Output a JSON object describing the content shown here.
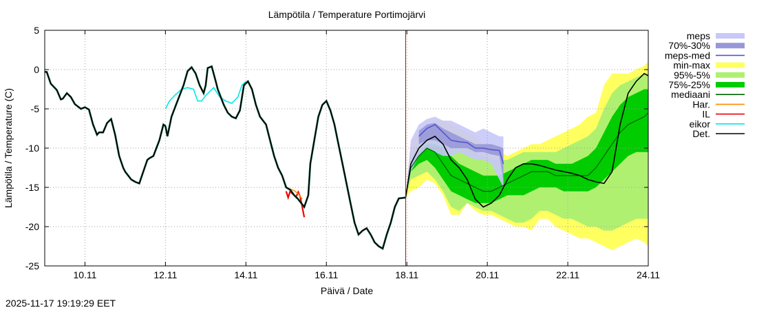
{
  "chart_data": {
    "type": "line",
    "title": "Lämpötila / Temperature   Portimojärvi",
    "xlabel": "Päivä / Date",
    "ylabel": "Lämpötila / Temperature (C)",
    "timestamp": "2025-11-17 19:19:29 EET",
    "ylim": [
      -25,
      5
    ],
    "xlim": [
      9.0,
      24.0
    ],
    "grid": true,
    "yticks": [
      5,
      0,
      -5,
      -10,
      -15,
      -20,
      -25
    ],
    "xticks": [
      {
        "value": 10,
        "label": "10.11"
      },
      {
        "value": 12,
        "label": "12.11"
      },
      {
        "value": 14,
        "label": "14.11"
      },
      {
        "value": 16,
        "label": "16.11"
      },
      {
        "value": 18,
        "label": "18.11"
      },
      {
        "value": 20,
        "label": "20.11"
      },
      {
        "value": 22,
        "label": "22.11"
      },
      {
        "value": 24,
        "label": "24.11"
      }
    ],
    "forecast_start": 17.97,
    "legend": [
      {
        "label": "meps",
        "color": "#c8c8f8",
        "kind": "band"
      },
      {
        "label": "70%-30%",
        "color": "#9898d8",
        "kind": "band"
      },
      {
        "label": "meps-med",
        "color": "#5050d0",
        "kind": "line"
      },
      {
        "label": "min-max",
        "color": "#ffff60",
        "kind": "band"
      },
      {
        "label": "95%-5%",
        "color": "#b0f070",
        "kind": "band"
      },
      {
        "label": "75%-25%",
        "color": "#00cc00",
        "kind": "band"
      },
      {
        "label": "mediaani",
        "color": "#006400",
        "kind": "line"
      },
      {
        "label": "Har.",
        "color": "#ff8800",
        "kind": "line"
      },
      {
        "label": "IL",
        "color": "#ee0000",
        "kind": "line"
      },
      {
        "label": "eikor",
        "color": "#00e8e8",
        "kind": "line"
      },
      {
        "label": "Det.",
        "color": "#000000",
        "kind": "line"
      }
    ],
    "observed": {
      "name": "Det.",
      "x": [
        9.0,
        9.05,
        9.15,
        9.3,
        9.4,
        9.45,
        9.55,
        9.65,
        9.75,
        9.9,
        10.0,
        10.1,
        10.2,
        10.3,
        10.35,
        10.45,
        10.55,
        10.65,
        10.75,
        10.85,
        10.95,
        11.0,
        11.15,
        11.25,
        11.35,
        11.45,
        11.55,
        11.6,
        11.7,
        11.85,
        11.95,
        12.0,
        12.05,
        12.15,
        12.3,
        12.45,
        12.55,
        12.65,
        12.75,
        12.85,
        12.95,
        13.0,
        13.05,
        13.15,
        13.25,
        13.3,
        13.45,
        13.55,
        13.65,
        13.75,
        13.85,
        13.95,
        14.05,
        14.15,
        14.25,
        14.35,
        14.5,
        14.6,
        14.7,
        14.8,
        14.9,
        15.0,
        15.1,
        15.2,
        15.3,
        15.45,
        15.55,
        15.6,
        15.7,
        15.8,
        15.9,
        16.0,
        16.1,
        16.2,
        16.3,
        16.4,
        16.5,
        16.6,
        16.7,
        16.8,
        16.9,
        17.0,
        17.1,
        17.2,
        17.3,
        17.4,
        17.5,
        17.6,
        17.7,
        17.8,
        17.97
      ],
      "y": [
        -0.3,
        -0.3,
        -1.8,
        -2.6,
        -3.8,
        -3.7,
        -3.0,
        -3.5,
        -4.4,
        -5.0,
        -4.8,
        -5.1,
        -7.0,
        -8.3,
        -8.0,
        -8.0,
        -6.8,
        -6.3,
        -8.3,
        -11.0,
        -12.5,
        -13.0,
        -14.0,
        -14.3,
        -14.5,
        -13.0,
        -11.5,
        -11.3,
        -11.0,
        -9.0,
        -7.0,
        -7.2,
        -8.5,
        -6.0,
        -4.0,
        -2.0,
        -0.2,
        0.3,
        -0.5,
        -2.0,
        -3.0,
        -2.0,
        0.2,
        0.4,
        -1.5,
        -2.5,
        -4.5,
        -5.5,
        -6.0,
        -6.2,
        -5.2,
        -2.0,
        -1.5,
        -2.5,
        -4.5,
        -6.0,
        -7.0,
        -9.0,
        -11.0,
        -12.5,
        -13.5,
        -15.0,
        -15.3,
        -16.0,
        -16.5,
        -17.5,
        -16.0,
        -12.0,
        -9.0,
        -6.0,
        -4.5,
        -4.0,
        -5.2,
        -7.0,
        -9.5,
        -12.0,
        -14.5,
        -17.0,
        -19.5,
        -21.0,
        -20.5,
        -20.2,
        -21.0,
        -22.0,
        -22.5,
        -22.8,
        -21.0,
        -19.5,
        -17.5,
        -16.4,
        -16.3
      ]
    },
    "eikor": {
      "name": "eikor",
      "x": [
        12.0,
        12.1,
        12.25,
        12.4,
        12.55,
        12.7,
        12.8,
        12.9,
        13.0,
        13.1,
        13.2,
        13.35,
        13.5,
        13.65,
        13.8,
        13.9,
        14.0
      ],
      "y": [
        -5.0,
        -4.0,
        -3.2,
        -2.5,
        -2.3,
        -2.5,
        -4.0,
        -4.0,
        -3.3,
        -2.8,
        -2.3,
        -3.5,
        -4.0,
        -4.3,
        -3.5,
        -2.0,
        -1.5
      ]
    },
    "il": {
      "name": "IL",
      "x": [
        15.0,
        15.05,
        15.1,
        15.15,
        15.25,
        15.3,
        15.35,
        15.45
      ],
      "y": [
        -15.5,
        -16.3,
        -15.5,
        -15.8,
        -16.2,
        -15.6,
        -16.2,
        -18.8
      ]
    },
    "har": {
      "name": "Har.",
      "x": [
        15.0,
        15.1,
        15.2,
        15.3,
        15.4
      ],
      "y": [
        -15.0,
        -15.2,
        -15.4,
        -15.8,
        -16.5
      ]
    },
    "forecast_x": [
      17.97,
      18.1,
      18.3,
      18.5,
      18.7,
      18.9,
      19.1,
      19.3,
      19.5,
      19.7,
      19.9,
      20.1,
      20.3,
      20.5,
      20.7,
      20.9,
      21.1,
      21.3,
      21.5,
      21.7,
      21.9,
      22.1,
      22.3,
      22.5,
      22.7,
      22.9,
      23.1,
      23.3,
      23.5,
      23.7,
      23.9,
      24.0
    ],
    "minmax": {
      "upper": [
        -16.3,
        -9.5,
        -8.0,
        -7.0,
        -6.5,
        -6.5,
        -7.0,
        -7.5,
        -8.0,
        -8.5,
        -9.5,
        -10.0,
        -10.5,
        -11.0,
        -10.5,
        -10.0,
        -9.5,
        -9.5,
        -9.0,
        -8.5,
        -8.0,
        -7.5,
        -7.0,
        -6.0,
        -5.5,
        -2.0,
        -0.5,
        -0.5,
        -0.5,
        0.0,
        0.5,
        1.0
      ],
      "lower": [
        -16.3,
        -15.5,
        -15.0,
        -14.0,
        -14.5,
        -16.0,
        -18.5,
        -18.5,
        -17.0,
        -18.0,
        -18.5,
        -18.5,
        -19.0,
        -19.5,
        -20.0,
        -20.0,
        -20.5,
        -19.0,
        -19.0,
        -20.0,
        -20.5,
        -21.0,
        -21.5,
        -21.5,
        -22.0,
        -22.5,
        -23.0,
        -22.5,
        -22.0,
        -21.5,
        -22.0,
        -22.5
      ]
    },
    "p95_5": {
      "upper": [
        -16.3,
        -11.0,
        -9.5,
        -8.0,
        -7.5,
        -7.5,
        -8.5,
        -9.5,
        -10.0,
        -10.5,
        -11.0,
        -11.5,
        -11.5,
        -11.5,
        -11.0,
        -10.5,
        -10.5,
        -10.5,
        -10.5,
        -10.5,
        -10.0,
        -9.5,
        -9.0,
        -8.5,
        -7.5,
        -5.0,
        -3.0,
        -2.0,
        -1.5,
        -1.0,
        -0.5,
        -0.5
      ],
      "lower": [
        -16.3,
        -14.0,
        -13.5,
        -13.0,
        -14.0,
        -15.5,
        -17.5,
        -18.0,
        -17.0,
        -17.5,
        -18.0,
        -18.0,
        -18.5,
        -19.0,
        -19.5,
        -19.5,
        -19.0,
        -18.0,
        -18.0,
        -18.5,
        -19.0,
        -19.0,
        -19.5,
        -20.0,
        -20.0,
        -20.5,
        -20.5,
        -20.0,
        -19.5,
        -19.0,
        -19.0,
        -19.0
      ]
    },
    "p75_25": {
      "upper": [
        -16.3,
        -12.0,
        -10.5,
        -9.5,
        -9.5,
        -10.0,
        -11.0,
        -12.0,
        -12.5,
        -13.0,
        -13.5,
        -13.5,
        -13.5,
        -13.0,
        -12.5,
        -12.0,
        -11.5,
        -11.5,
        -11.5,
        -12.0,
        -12.0,
        -12.0,
        -11.5,
        -11.0,
        -10.0,
        -8.0,
        -6.0,
        -4.5,
        -3.5,
        -3.0,
        -2.5,
        -2.5
      ],
      "lower": [
        -16.3,
        -13.0,
        -12.0,
        -11.5,
        -12.5,
        -14.0,
        -15.5,
        -16.0,
        -16.5,
        -17.0,
        -17.0,
        -17.0,
        -16.5,
        -16.0,
        -16.0,
        -16.0,
        -15.5,
        -15.0,
        -15.0,
        -15.0,
        -15.5,
        -15.5,
        -15.5,
        -15.5,
        -15.0,
        -14.0,
        -13.0,
        -12.0,
        -11.0,
        -10.5,
        -10.5,
        -10.5
      ]
    },
    "median": [
      -16.3,
      -12.5,
      -11.0,
      -10.0,
      -10.5,
      -12.0,
      -13.5,
      -14.0,
      -14.5,
      -15.0,
      -15.5,
      -15.5,
      -15.0,
      -14.5,
      -14.0,
      -13.5,
      -13.0,
      -13.0,
      -13.0,
      -13.5,
      -13.5,
      -13.5,
      -13.5,
      -13.5,
      -12.5,
      -11.0,
      -9.5,
      -8.0,
      -7.0,
      -6.5,
      -6.0,
      -5.5
    ],
    "det_forecast": [
      -16.3,
      -12.0,
      -10.0,
      -9.0,
      -8.5,
      -9.5,
      -11.5,
      -12.5,
      -14.0,
      -16.5,
      -17.5,
      -17.0,
      -16.0,
      -14.0,
      -12.5,
      -12.0,
      -12.0,
      -12.2,
      -12.5,
      -12.8,
      -13.0,
      -13.2,
      -13.5,
      -14.0,
      -14.3,
      -14.5,
      -13.0,
      -7.0,
      -3.0,
      -1.5,
      -0.5,
      -0.8
    ],
    "meps": {
      "x": [
        17.97,
        18.1,
        18.3,
        18.5,
        18.7,
        18.9,
        19.1,
        19.3,
        19.5,
        19.7,
        19.9,
        20.1,
        20.3,
        20.4
      ],
      "upper": [
        -16.3,
        -9.0,
        -7.0,
        -6.3,
        -6.0,
        -6.5,
        -6.5,
        -7.0,
        -7.5,
        -8.0,
        -7.5,
        -8.0,
        -8.5,
        -8.5
      ],
      "lower": [
        -16.3,
        -13.0,
        -11.0,
        -10.0,
        -10.5,
        -11.0,
        -11.0,
        -10.5,
        -11.0,
        -11.5,
        -11.5,
        -12.0,
        -14.0,
        -15.0
      ]
    },
    "meps_7030": {
      "x": [
        18.3,
        18.5,
        18.7,
        18.9,
        19.1,
        19.3,
        19.5,
        19.7,
        19.9,
        20.1,
        20.3,
        20.4
      ],
      "upper": [
        -7.8,
        -7.0,
        -6.8,
        -7.5,
        -8.0,
        -8.5,
        -9.0,
        -9.5,
        -9.5,
        -9.5,
        -9.8,
        -10.0
      ],
      "lower": [
        -9.5,
        -9.0,
        -9.0,
        -9.5,
        -10.0,
        -10.0,
        -10.0,
        -10.5,
        -10.5,
        -10.8,
        -11.0,
        -14.0
      ]
    },
    "meps_med": {
      "x": [
        18.3,
        18.5,
        18.7,
        18.9,
        19.1,
        19.3,
        19.5,
        19.7,
        19.9,
        20.1,
        20.3,
        20.4
      ],
      "y": [
        -8.5,
        -7.5,
        -7.0,
        -8.0,
        -9.0,
        -9.2,
        -9.3,
        -10.0,
        -10.0,
        -10.2,
        -10.3,
        -12.0
      ]
    }
  }
}
